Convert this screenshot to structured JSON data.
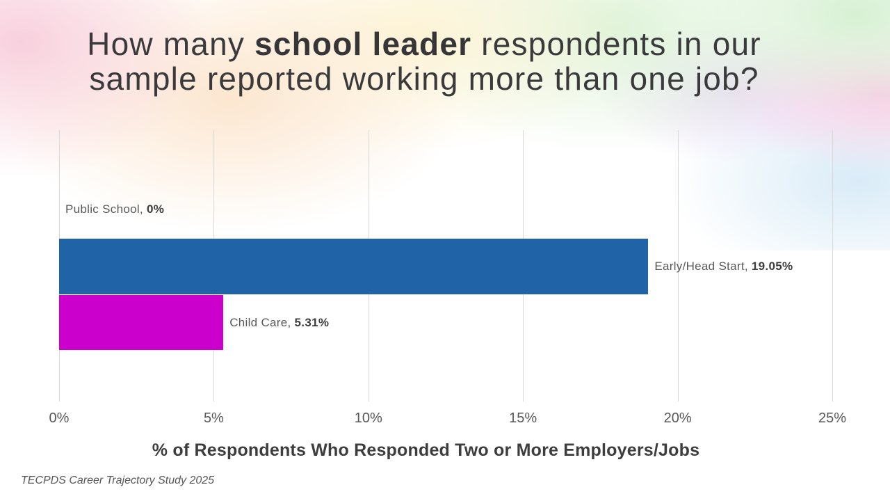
{
  "title": {
    "line1_pre": "How many ",
    "line1_bold": "school leader",
    "line1_post": " respondents in our",
    "line2": "sample reported working more than one job?"
  },
  "footer": {
    "text": "TECPDS Career Trajectory Study 2025"
  },
  "colors": {
    "bar_blue": "#2063a7",
    "bar_magenta": "#cc00cc",
    "gridline": "#d9d9d9",
    "title_text": "#3a3a3c",
    "label_gray": "#595959"
  },
  "chart_data": {
    "type": "bar",
    "orientation": "horizontal",
    "categories": [
      "Public School",
      "Early/Head Start",
      "Child Care"
    ],
    "values": [
      0,
      19.05,
      5.31
    ],
    "xlabel": "% of Respondents Who Responded Two or More Employers/Jobs",
    "xlim": [
      0,
      25
    ],
    "xticks": [
      "0%",
      "5%",
      "10%",
      "15%",
      "20%",
      "25%"
    ],
    "grid": "vertical",
    "legend": "none",
    "label_separator": ", ",
    "rows": [
      {
        "category": "Public School",
        "value": 0,
        "value_label": "0%",
        "color": null
      },
      {
        "category": "Early/Head Start",
        "value": 19.05,
        "value_label": "19.05%",
        "color": "#2063a7"
      },
      {
        "category": "Child Care",
        "value": 5.31,
        "value_label": "5.31%",
        "color": "#cc00cc"
      }
    ]
  }
}
